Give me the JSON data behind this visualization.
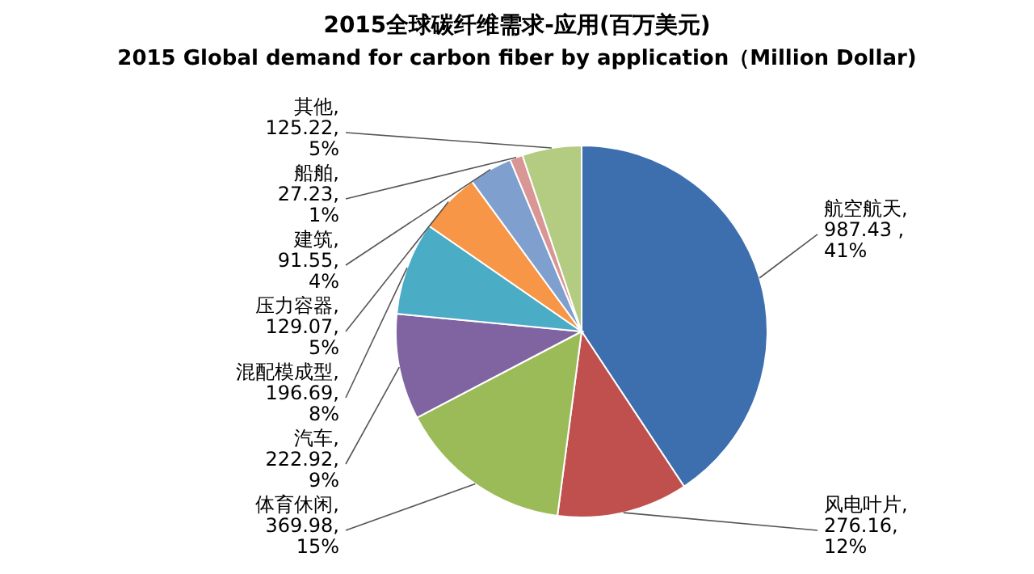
{
  "chart_data": {
    "type": "pie",
    "title": "2015全球碳纤维需求-应用(百万美元)",
    "subtitle": "2015 Global demand for carbon fiber by application（Million Dollar)",
    "categories": [
      "航空航天",
      "风电叶片",
      "体育休闲",
      "汽车",
      "混配模成型",
      "压力容器",
      "建筑",
      "船舶",
      "其他"
    ],
    "values": [
      987.43,
      276.16,
      369.98,
      222.92,
      196.69,
      129.07,
      91.55,
      27.23,
      125.22
    ],
    "value_labels": [
      ",\n987.43 ,\n41%",
      ",\n276.16,\n12%",
      ",\n369.98,\n15%",
      ",\n222.92,\n9%",
      ",\n196.69,\n8%",
      ",\n129.07,\n5%",
      ",\n91.55,\n4%",
      ",\n27.23,\n1%",
      ",\n125.22,\n5%"
    ],
    "colors": [
      "#3d6fae",
      "#c0504d",
      "#9bbb59",
      "#8064a2",
      "#4bacc6",
      "#f79646",
      "#7f9fcf",
      "#d99694",
      "#b3cc82"
    ]
  }
}
